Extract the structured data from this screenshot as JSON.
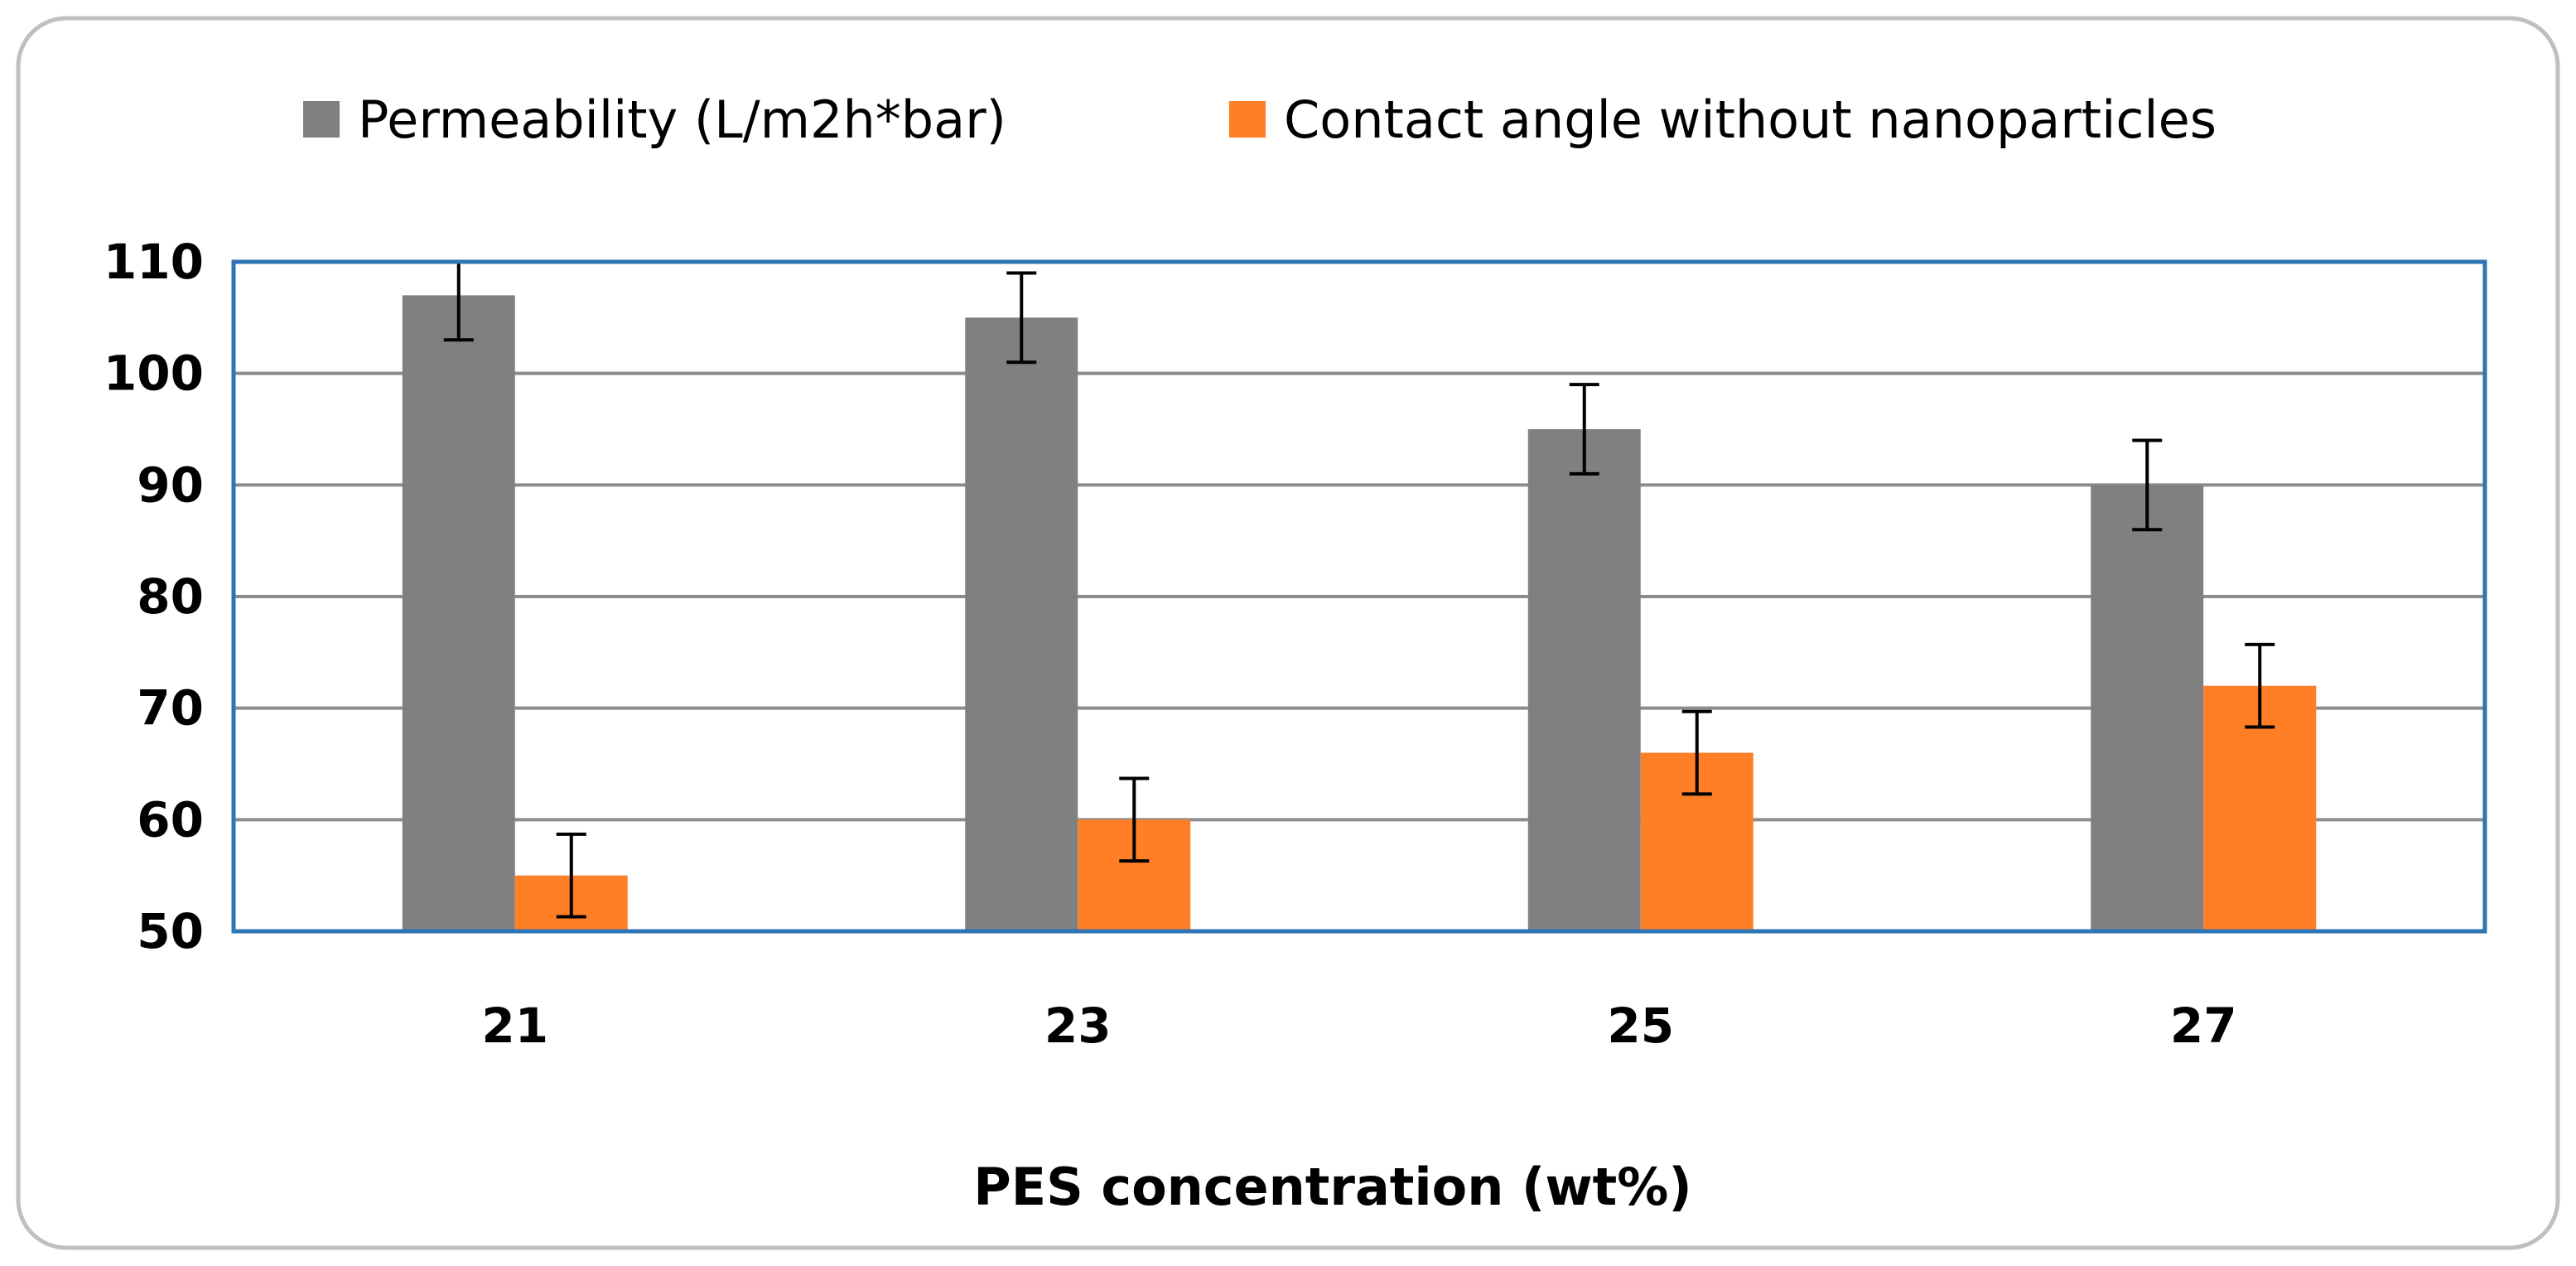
{
  "chart_data": {
    "type": "bar",
    "title": "",
    "xlabel": "PES concentration (wt%)",
    "ylabel": "",
    "categories": [
      "21",
      "23",
      "25",
      "27"
    ],
    "ylim": [
      50,
      110
    ],
    "yticks": [
      50,
      60,
      70,
      80,
      90,
      100,
      110
    ],
    "ytick_labels": [
      "50",
      "60",
      "70",
      "80",
      "90",
      "100",
      "110"
    ],
    "grid": true,
    "legend_position": "top",
    "series": [
      {
        "name": "Permeability (L/m2h*bar)",
        "color": "#808080",
        "values": [
          107,
          105,
          95,
          90
        ],
        "errors": [
          4,
          4,
          4,
          4
        ]
      },
      {
        "name": "Contact angle without nanoparticles",
        "color": "#FF7F27",
        "values": [
          55,
          60,
          66,
          72
        ],
        "errors": [
          3.7,
          3.7,
          3.7,
          3.7
        ]
      }
    ]
  },
  "colors": {
    "frame_border": "#BFBFBF",
    "plot_border": "#2E75B6",
    "gridline": "#8C8C8C",
    "error_bar": "#000000"
  }
}
